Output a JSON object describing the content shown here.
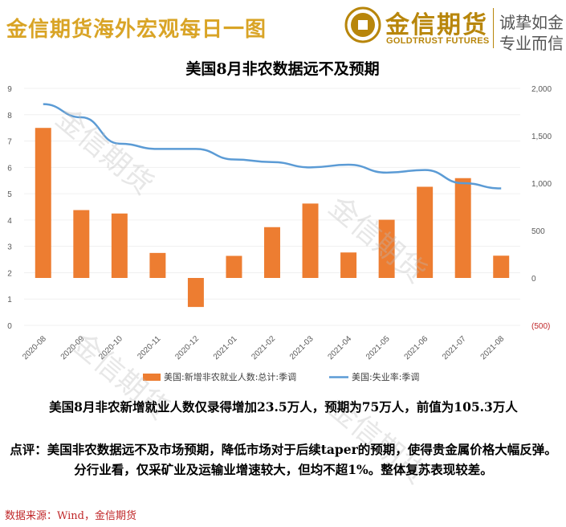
{
  "header": {
    "title": "金信期货海外宏观每日一图",
    "logo_cn": "金信期货",
    "logo_en": "GOLDTRUST FUTURES",
    "slogan_line1": "诚挚如金",
    "slogan_line2": "专业而信"
  },
  "watermark": "金信期货",
  "colors": {
    "bar": "#ed7d31",
    "line": "#5b9bd5",
    "header_gold": "#d9a426",
    "logo_gold": "#b8860b",
    "negative_tick": "#c0282a"
  },
  "chart_data": {
    "type": "bar+line",
    "title": "美国8月非农数据远不及预期",
    "categories": [
      "2020-08",
      "2020-09",
      "2020-10",
      "2020-11",
      "2020-12",
      "2021-01",
      "2021-02",
      "2021-03",
      "2021-04",
      "2021-05",
      "2021-06",
      "2021-07",
      "2021-08"
    ],
    "series": [
      {
        "name": "美国:新增非农就业人数:总计:季调",
        "type": "bar",
        "axis": "right",
        "values": [
          1583,
          716,
          680,
          264,
          -306,
          233,
          536,
          785,
          269,
          614,
          962,
          1053,
          235
        ]
      },
      {
        "name": "美国:失业率:季调",
        "type": "line",
        "axis": "left",
        "values": [
          8.4,
          7.9,
          6.9,
          6.7,
          6.7,
          6.3,
          6.2,
          6.0,
          6.1,
          5.8,
          5.9,
          5.4,
          5.2
        ]
      }
    ],
    "left_axis": {
      "min": 0,
      "max": 9,
      "ticks": [
        "0",
        "1",
        "2",
        "3",
        "4",
        "5",
        "6",
        "7",
        "8",
        "9"
      ]
    },
    "right_axis": {
      "min": -500,
      "max": 2000,
      "ticks": [
        "(500)",
        "0",
        "500",
        "1,000",
        "1,500",
        "2,000"
      ]
    },
    "legend_position": "bottom"
  },
  "caption": "美国8月非农新增就业人数仅录得增加23.5万人，预期为75万人，前值为105.3万人",
  "comment": "点评：美国非农数据远不及市场预期，降低市场对于后续taper的预期，使得贵金属价格大幅反弹。分行业看，仅采矿业及运输业增速较大，但均不超1%。整体复苏表现较差。",
  "source": "数据来源：Wind，金信期货"
}
